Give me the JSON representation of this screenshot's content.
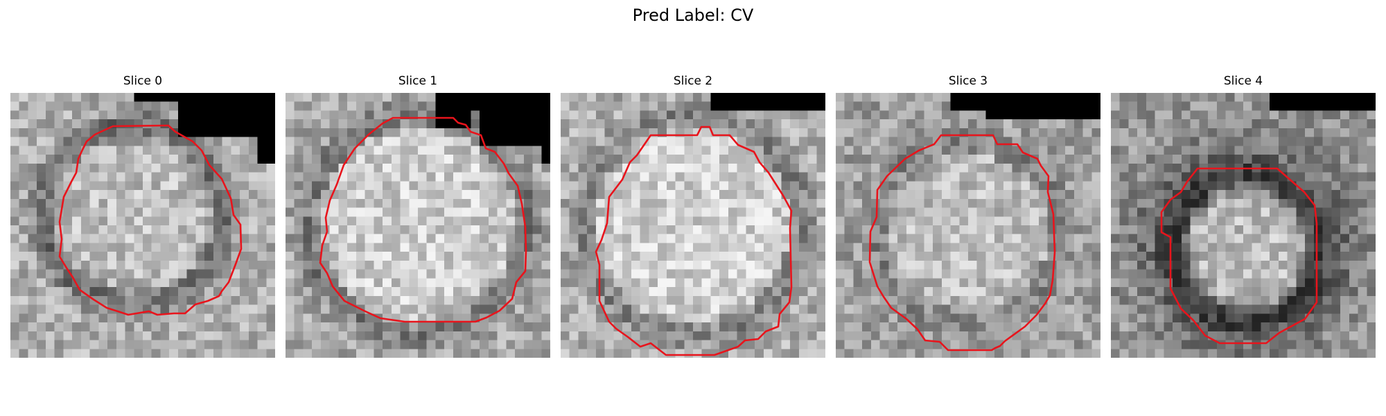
{
  "figure": {
    "suptitle": "Pred Label: CV"
  },
  "slices": [
    {
      "title": "Slice 0"
    },
    {
      "title": "Slice 1"
    },
    {
      "title": "Slice 2"
    },
    {
      "title": "Slice 3"
    },
    {
      "title": "Slice 4"
    }
  ],
  "colors": {
    "contour": "#e8141c",
    "background": "#ffffff"
  }
}
